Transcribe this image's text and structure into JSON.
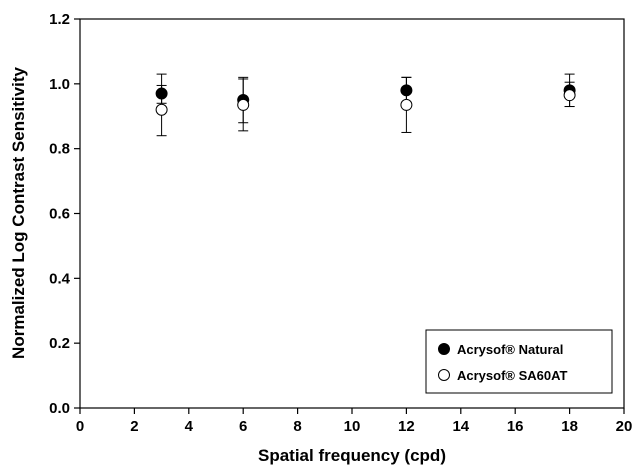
{
  "chart_data": {
    "type": "scatter",
    "xlabel": "Spatial frequency (cpd)",
    "ylabel": "Normalized Log Contrast Sensitivity",
    "xlim": [
      0,
      20
    ],
    "ylim": [
      0.0,
      1.2
    ],
    "xticks": [
      "0",
      "2",
      "4",
      "6",
      "8",
      "10",
      "12",
      "14",
      "16",
      "18",
      "20"
    ],
    "yticks": [
      "0.0",
      "0.2",
      "0.4",
      "0.6",
      "0.8",
      "1.0",
      "1.2"
    ],
    "grid": false,
    "legend_position": "bottom-right",
    "series": [
      {
        "name": "Acrysof® Natural",
        "marker": "filled-circle",
        "color": "#000000",
        "x": [
          3,
          6,
          12,
          18
        ],
        "y": [
          0.97,
          0.95,
          0.98,
          0.98
        ],
        "err_low": [
          0.94,
          0.88,
          0.94,
          0.93
        ],
        "err_high": [
          1.03,
          1.02,
          1.02,
          1.03
        ]
      },
      {
        "name": "Acrysof® SA60AT",
        "marker": "open-circle",
        "color": "#ffffff",
        "x": [
          3,
          6,
          12,
          18
        ],
        "y": [
          0.92,
          0.935,
          0.935,
          0.965
        ],
        "err_low": [
          0.84,
          0.855,
          0.85,
          0.93
        ],
        "err_high": [
          0.995,
          1.015,
          1.02,
          1.005
        ]
      }
    ]
  }
}
